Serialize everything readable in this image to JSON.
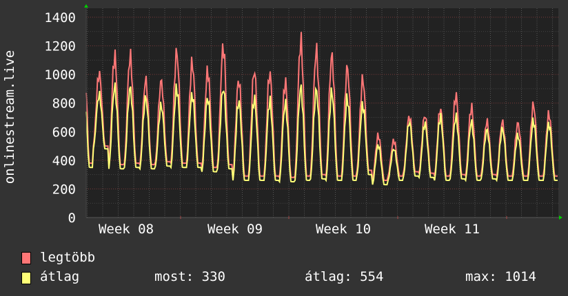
{
  "chart_data": {
    "type": "line",
    "ylabel": "onlinestream.live",
    "ylim": [
      0,
      1400
    ],
    "yticks": [
      "0",
      "200",
      "400",
      "600",
      "800",
      "1000",
      "1200",
      "1400"
    ],
    "xticks": [
      "Week 08",
      "Week 09",
      "Week 10",
      "Week 11"
    ],
    "grid": true,
    "series": [
      {
        "name": "legtöbb",
        "color": "#ff7777",
        "daily_peak": [
          1260,
          1050,
          1190,
          1190,
          1010,
          1000,
          1220,
          1140,
          1080,
          1260,
          1020,
          1090,
          1070,
          1000,
          1310,
          1240,
          1200,
          1110,
          1020,
          600,
          560,
          740,
          750,
          800,
          900,
          810,
          700,
          700,
          690,
          830,
          760
        ],
        "daily_trough": [
          380,
          500,
          370,
          380,
          370,
          390,
          380,
          380,
          350,
          370,
          290,
          290,
          290,
          280,
          290,
          300,
          290,
          290,
          330,
          260,
          290,
          320,
          310,
          290,
          300,
          290,
          300,
          290,
          290,
          290,
          290
        ]
      },
      {
        "name": "átlag",
        "color": "#ffff77",
        "daily_peak": [
          1000,
          890,
          960,
          950,
          880,
          820,
          950,
          900,
          880,
          950,
          860,
          880,
          860,
          840,
          960,
          940,
          930,
          880,
          830,
          530,
          500,
          700,
          690,
          740,
          740,
          700,
          640,
          650,
          600,
          710,
          690
        ],
        "daily_trough": [
          350,
          480,
          340,
          350,
          340,
          360,
          350,
          350,
          320,
          340,
          260,
          260,
          260,
          250,
          260,
          270,
          260,
          260,
          300,
          230,
          260,
          290,
          280,
          260,
          270,
          260,
          270,
          260,
          260,
          260,
          260
        ]
      }
    ]
  },
  "legend": {
    "max_label": "legtöbb",
    "avg_label": "átlag",
    "now": "most: 330",
    "average": "átlag: 554",
    "maximum": "max: 1014"
  }
}
